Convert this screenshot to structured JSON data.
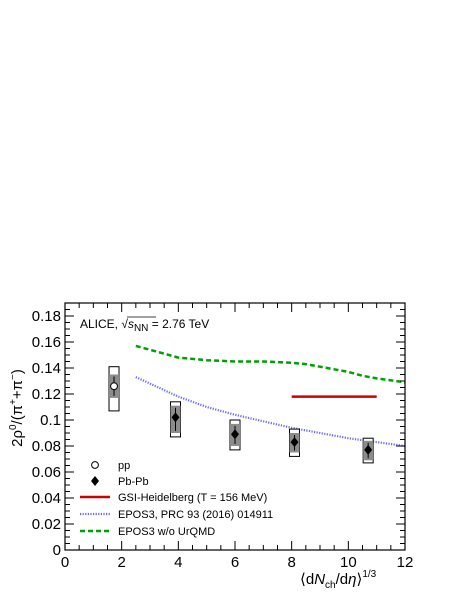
{
  "chart_data": {
    "type": "scatter",
    "annotation": {
      "prefix": "ALICE, ",
      "sqrt_label": "s",
      "sqrt_sub": "NN",
      "suffix": " = 2.76 TeV"
    },
    "xlabel": {
      "open": "⟨d",
      "N": "N",
      "ch": "ch",
      "slash": "/d",
      "eta": "η",
      "close": "⟩",
      "exp": "1/3"
    },
    "ylabel": {
      "prefix": "2ρ",
      "rho_sup": "0",
      "mid": "/(π",
      "plus_sup": "+",
      "plus": "+π",
      "minus_sup": "−",
      "end": ")"
    },
    "xlim": [
      0,
      12
    ],
    "ylim": [
      0,
      0.19
    ],
    "x_ticks": [
      "0",
      "2",
      "4",
      "6",
      "8",
      "10",
      "12"
    ],
    "y_ticks": [
      "0",
      "0.02",
      "0.04",
      "0.06",
      "0.08",
      "0.1",
      "0.12",
      "0.14",
      "0.16",
      "0.18"
    ],
    "series": [
      {
        "name": "pp",
        "marker": "open-circle",
        "color": "#000000",
        "points": [
          {
            "x": 1.73,
            "y": 0.126,
            "syst_lo": 0.107,
            "syst_hi": 0.141,
            "uncorr_lo": 0.117,
            "uncorr_hi": 0.135
          }
        ]
      },
      {
        "name": "Pb-Pb",
        "marker": "filled-diamond",
        "color": "#000000",
        "points": [
          {
            "x": 3.9,
            "y": 0.102,
            "syst_lo": 0.087,
            "syst_hi": 0.114,
            "uncorr_lo": 0.09,
            "uncorr_hi": 0.111
          },
          {
            "x": 6.0,
            "y": 0.089,
            "syst_lo": 0.077,
            "syst_hi": 0.1,
            "uncorr_lo": 0.08,
            "uncorr_hi": 0.097
          },
          {
            "x": 8.1,
            "y": 0.083,
            "syst_lo": 0.072,
            "syst_hi": 0.093,
            "uncorr_lo": 0.075,
            "uncorr_hi": 0.09
          },
          {
            "x": 10.7,
            "y": 0.077,
            "syst_lo": 0.067,
            "syst_hi": 0.086,
            "uncorr_lo": 0.069,
            "uncorr_hi": 0.084
          }
        ]
      },
      {
        "name": "GSI-Heidelberg (T = 156 MeV)",
        "line": "solid",
        "color": "#cc0000",
        "x": [
          8.0,
          11.0
        ],
        "y": [
          0.118,
          0.118
        ]
      },
      {
        "name": "EPOS3, PRC 93 (2016) 014911",
        "line": "dotted",
        "color": "#6666ff",
        "x": [
          2.5,
          3,
          4,
          5,
          6,
          7,
          8,
          9,
          10,
          11,
          12
        ],
        "y": [
          0.133,
          0.128,
          0.118,
          0.11,
          0.104,
          0.099,
          0.094,
          0.09,
          0.086,
          0.083,
          0.08
        ]
      },
      {
        "name": "EPOS3 w/o UrQMD",
        "line": "dashed",
        "color": "#00a000",
        "x": [
          2.5,
          3,
          4,
          5,
          6,
          7,
          8,
          8.5,
          9,
          9.5,
          10,
          10.5,
          11,
          12
        ],
        "y": [
          0.157,
          0.154,
          0.148,
          0.146,
          0.145,
          0.145,
          0.144,
          0.143,
          0.141,
          0.139,
          0.137,
          0.134,
          0.132,
          0.129
        ]
      }
    ],
    "legend_position": "bottom-left",
    "grid": false
  }
}
